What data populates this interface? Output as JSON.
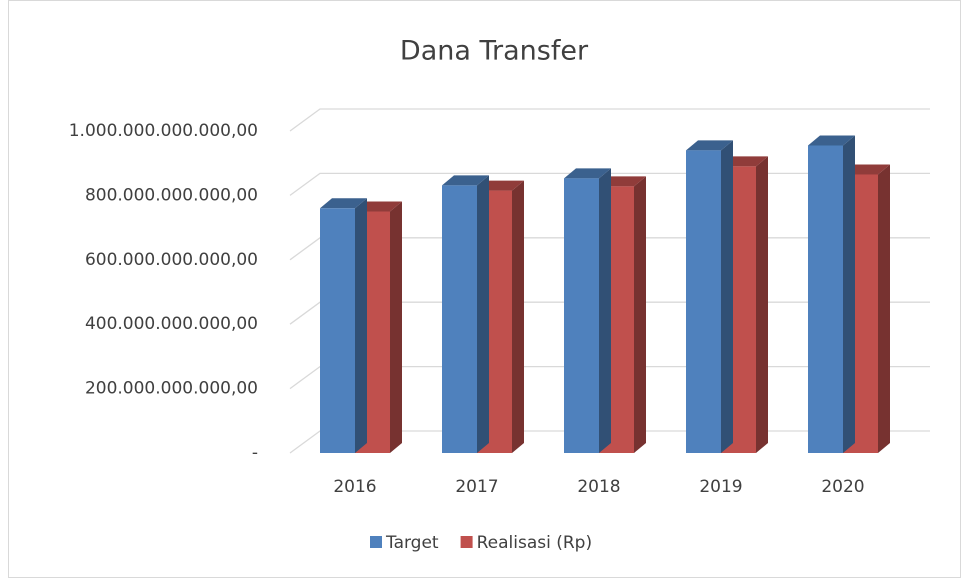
{
  "chart_data": {
    "type": "bar",
    "title": "Dana Transfer",
    "categories": [
      "2016",
      "2017",
      "2018",
      "2019",
      "2020"
    ],
    "series": [
      {
        "name": "Target",
        "color": "#4f81bd",
        "values": [
          760000000000,
          831000000000,
          853000000000,
          940000000000,
          955000000000
        ]
      },
      {
        "name": "Realisasi (Rp)",
        "color": "#c0504d",
        "values": [
          750000000000,
          815000000000,
          828000000000,
          890000000000,
          865000000000
        ]
      }
    ],
    "ylim": [
      0,
      1000000000000
    ],
    "yticks": [
      {
        "value": 0,
        "label": "-"
      },
      {
        "value": 200000000000,
        "label": "200.000.000.000,00"
      },
      {
        "value": 400000000000,
        "label": "400.000.000.000,00"
      },
      {
        "value": 600000000000,
        "label": "600.000.000.000,00"
      },
      {
        "value": 800000000000,
        "label": "800.000.000.000,00"
      },
      {
        "value": 1000000000000,
        "label": "1.000.000.000.000,00"
      }
    ],
    "grid": true,
    "legend": "bottom"
  }
}
